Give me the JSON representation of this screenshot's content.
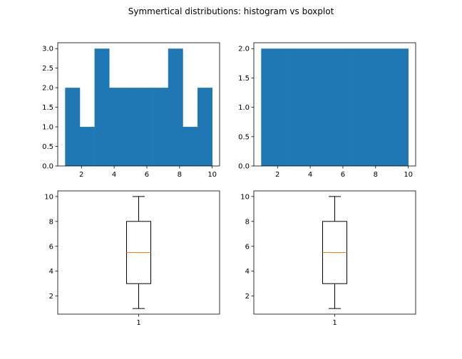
{
  "figure": {
    "suptitle": "Symmertical distributions: histogram vs boxplot"
  },
  "chart_data": [
    {
      "type": "bar",
      "subtype": "histogram",
      "bins": [
        {
          "from": 1.0,
          "to": 1.9,
          "count": 2
        },
        {
          "from": 1.9,
          "to": 2.8,
          "count": 1
        },
        {
          "from": 2.8,
          "to": 3.7,
          "count": 3
        },
        {
          "from": 3.7,
          "to": 4.6,
          "count": 2
        },
        {
          "from": 4.6,
          "to": 5.5,
          "count": 2
        },
        {
          "from": 5.5,
          "to": 6.4,
          "count": 2
        },
        {
          "from": 6.4,
          "to": 7.3,
          "count": 2
        },
        {
          "from": 7.3,
          "to": 8.2,
          "count": 3
        },
        {
          "from": 8.2,
          "to": 9.1,
          "count": 1
        },
        {
          "from": 9.1,
          "to": 10.0,
          "count": 2
        }
      ],
      "xlim": [
        0.55,
        10.45
      ],
      "ylim": [
        0,
        3.15
      ],
      "xticks": [
        2,
        4,
        6,
        8,
        10
      ],
      "yticks": [
        0.0,
        0.5,
        1.0,
        1.5,
        2.0,
        2.5,
        3.0
      ],
      "bar_color": "#1f77b4"
    },
    {
      "type": "bar",
      "subtype": "histogram",
      "bins": [
        {
          "from": 1.0,
          "to": 1.9,
          "count": 2
        },
        {
          "from": 1.9,
          "to": 2.8,
          "count": 2
        },
        {
          "from": 2.8,
          "to": 3.7,
          "count": 2
        },
        {
          "from": 3.7,
          "to": 4.6,
          "count": 2
        },
        {
          "from": 4.6,
          "to": 5.5,
          "count": 2
        },
        {
          "from": 5.5,
          "to": 6.4,
          "count": 2
        },
        {
          "from": 6.4,
          "to": 7.3,
          "count": 2
        },
        {
          "from": 7.3,
          "to": 8.2,
          "count": 2
        },
        {
          "from": 8.2,
          "to": 9.1,
          "count": 2
        },
        {
          "from": 9.1,
          "to": 10.0,
          "count": 2
        }
      ],
      "xlim": [
        0.55,
        10.45
      ],
      "ylim": [
        0,
        2.1
      ],
      "xticks": [
        2,
        4,
        6,
        8,
        10
      ],
      "yticks": [
        0.0,
        0.5,
        1.0,
        1.5,
        2.0
      ],
      "bar_color": "#1f77b4"
    },
    {
      "type": "boxplot",
      "categories": [
        "1"
      ],
      "box": {
        "min": 1,
        "q1": 3,
        "median": 5.5,
        "q3": 8,
        "max": 10
      },
      "xlim": [
        0.5,
        1.5
      ],
      "ylim": [
        0.55,
        10.45
      ],
      "yticks": [
        2,
        4,
        6,
        8,
        10
      ],
      "median_color": "#ff7f0e"
    },
    {
      "type": "boxplot",
      "categories": [
        "1"
      ],
      "box": {
        "min": 1,
        "q1": 3,
        "median": 5.5,
        "q3": 8,
        "max": 10
      },
      "xlim": [
        0.5,
        1.5
      ],
      "ylim": [
        0.55,
        10.45
      ],
      "yticks": [
        2,
        4,
        6,
        8,
        10
      ],
      "median_color": "#ff7f0e"
    }
  ]
}
